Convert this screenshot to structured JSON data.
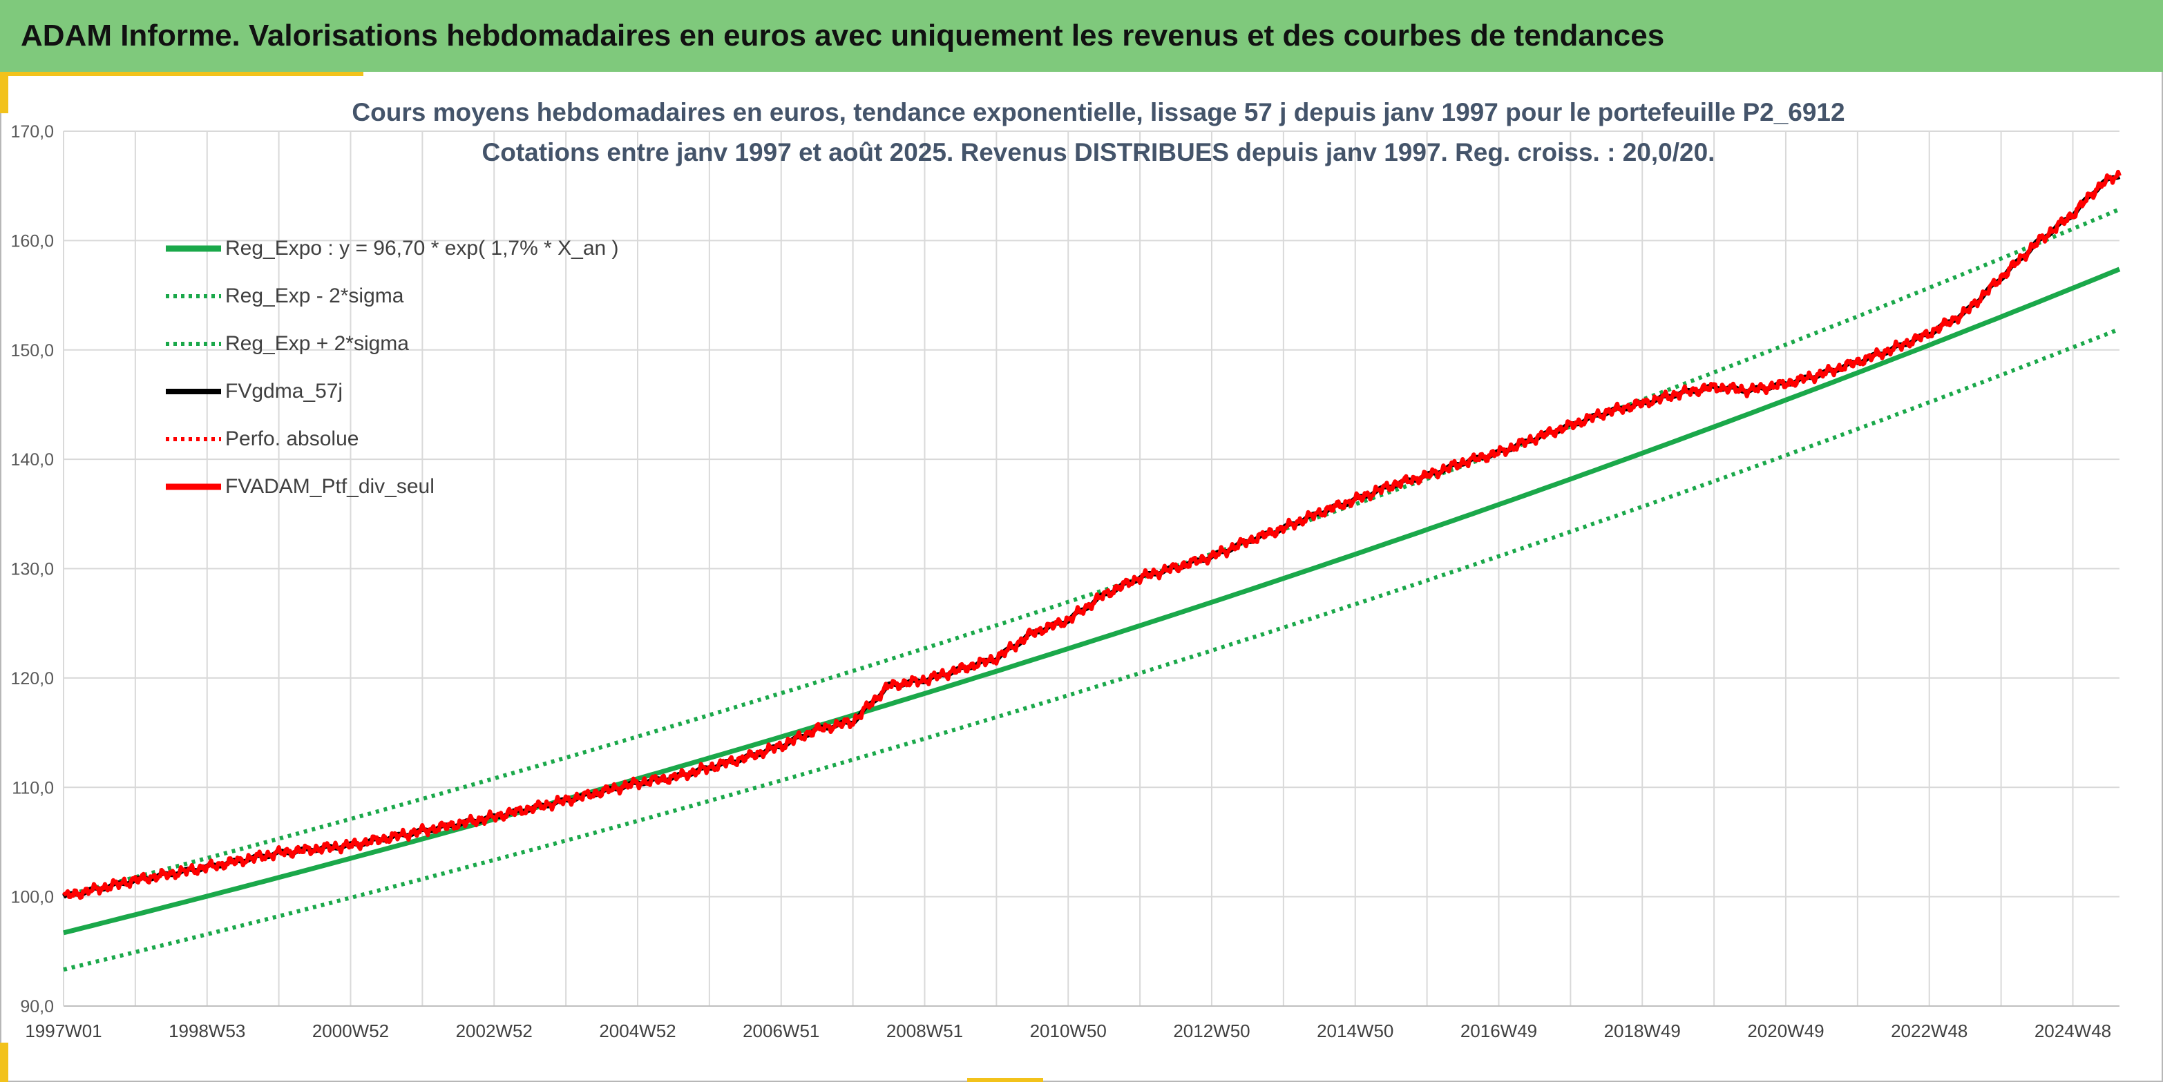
{
  "banner": {
    "title": "ADAM Informe. Valorisations hebdomadaires en euros avec uniquement les revenus et des courbes de tendances"
  },
  "colors": {
    "banner_bg": "#7fc97c",
    "accent": "#f2c21b",
    "green": "#1aa84a",
    "red": "#ff0000",
    "black": "#000000",
    "grid": "#d9d9d9"
  },
  "chart_data": {
    "type": "line",
    "title_lines": [
      "Cours moyens hebdomadaires en euros, tendance exponentielle, lissage 57 j depuis janv 1997 pour le portefeuille P2_6912",
      "Cotations entre janv 1997 et août 2025. Revenus DISTRIBUES depuis janv 1997. Reg. croiss. : 20,0/20."
    ],
    "x_range": [
      1997.0,
      2025.65
    ],
    "ylim": [
      90,
      170
    ],
    "y_ticks": [
      {
        "value": 90,
        "label": "90,0"
      },
      {
        "value": 100,
        "label": "100,0"
      },
      {
        "value": 110,
        "label": "110,0"
      },
      {
        "value": 120,
        "label": "120,0"
      },
      {
        "value": 130,
        "label": "130,0"
      },
      {
        "value": 140,
        "label": "140,0"
      },
      {
        "value": 150,
        "label": "150,0"
      },
      {
        "value": 160,
        "label": "160,0"
      },
      {
        "value": 170,
        "label": "170,0"
      }
    ],
    "x_ticks": [
      {
        "x": 1997.0,
        "label": "1997W01"
      },
      {
        "x": 1999.0,
        "label": "1998W53"
      },
      {
        "x": 2001.0,
        "label": "2000W52"
      },
      {
        "x": 2003.0,
        "label": "2002W52"
      },
      {
        "x": 2005.0,
        "label": "2004W52"
      },
      {
        "x": 2007.0,
        "label": "2006W51"
      },
      {
        "x": 2009.0,
        "label": "2008W51"
      },
      {
        "x": 2011.0,
        "label": "2010W50"
      },
      {
        "x": 2013.0,
        "label": "2012W50"
      },
      {
        "x": 2015.0,
        "label": "2014W50"
      },
      {
        "x": 2017.0,
        "label": "2016W49"
      },
      {
        "x": 2019.0,
        "label": "2018W49"
      },
      {
        "x": 2021.0,
        "label": "2020W49"
      },
      {
        "x": 2023.0,
        "label": "2022W48"
      },
      {
        "x": 2025.0,
        "label": "2024W48"
      }
    ],
    "grid": true,
    "legend_position": "top-left",
    "regression": {
      "a": 96.7,
      "rate": 0.017,
      "sigma_factor": 0.0348
    },
    "series": [
      {
        "name": "Reg_Expo : y = 96,70 * exp( 1,7% *  X_an )",
        "color": "#1aa84a",
        "style": "solid",
        "kind": "reg"
      },
      {
        "name": "Reg_Exp - 2*sigma",
        "color": "#1aa84a",
        "style": "dotted",
        "kind": "reg_low"
      },
      {
        "name": "Reg_Exp + 2*sigma",
        "color": "#1aa84a",
        "style": "dotted",
        "kind": "reg_high"
      },
      {
        "name": "FVgdma_57j",
        "color": "#000000",
        "style": "solid",
        "kind": "smooth"
      },
      {
        "name": "Perfo. absolue",
        "color": "#ff0000",
        "style": "dotted",
        "kind": "none"
      },
      {
        "name": "FVADAM_Ptf_div_seul",
        "color": "#ff0000",
        "style": "solid",
        "kind": "raw"
      }
    ],
    "portfolio": {
      "x": [
        1997.0,
        1998.0,
        1999.0,
        2000.0,
        2001.0,
        2002.0,
        2003.0,
        2004.0,
        2005.0,
        2005.5,
        2006.0,
        2006.5,
        2007.0,
        2007.5,
        2008.0,
        2008.5,
        2009.0,
        2009.5,
        2010.0,
        2010.5,
        2011.0,
        2011.5,
        2012.0,
        2012.5,
        2013.0,
        2013.5,
        2014.0,
        2014.5,
        2015.0,
        2015.5,
        2016.0,
        2016.5,
        2017.0,
        2017.5,
        2018.0,
        2018.5,
        2019.0,
        2019.5,
        2020.0,
        2020.5,
        2021.0,
        2021.5,
        2022.0,
        2022.5,
        2023.0,
        2023.5,
        2024.0,
        2024.5,
        2025.0,
        2025.4,
        2025.65
      ],
      "y": [
        100.0,
        101.5,
        102.7,
        104.0,
        104.7,
        106.0,
        107.3,
        108.8,
        110.4,
        110.9,
        111.8,
        112.7,
        113.8,
        115.3,
        116.0,
        119.3,
        119.8,
        120.8,
        121.8,
        124.1,
        125.3,
        127.6,
        129.2,
        130.1,
        131.1,
        132.5,
        133.7,
        135.1,
        136.3,
        137.6,
        138.5,
        139.7,
        140.6,
        141.9,
        143.1,
        144.3,
        145.1,
        146.0,
        146.6,
        146.3,
        146.9,
        147.8,
        148.9,
        150.1,
        151.5,
        153.4,
        156.6,
        159.8,
        162.4,
        165.2,
        166.0
      ]
    }
  }
}
